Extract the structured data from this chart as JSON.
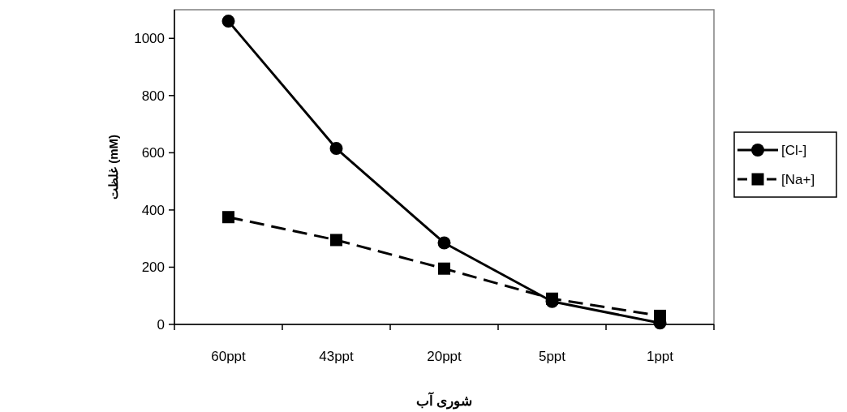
{
  "chart_data": {
    "type": "line",
    "xlabel": "شوری آب",
    "ylabel": "غلظت (mM)",
    "categories": [
      "60ppt",
      "43ppt",
      "20ppt",
      "5ppt",
      "1ppt"
    ],
    "series": [
      {
        "name": "[Cl-]",
        "color": "#000000",
        "values": [
          1060,
          615,
          285,
          80,
          5
        ],
        "marker": "circle",
        "line_style": "solid"
      },
      {
        "name": "[Na+]",
        "color": "#000000",
        "values": [
          375,
          295,
          195,
          90,
          30
        ],
        "marker": "square",
        "line_style": "dashed"
      }
    ],
    "ylim": [
      0,
      1100
    ],
    "yticks": [
      0,
      200,
      400,
      600,
      800,
      1000
    ],
    "grid": false,
    "legend": "right"
  }
}
